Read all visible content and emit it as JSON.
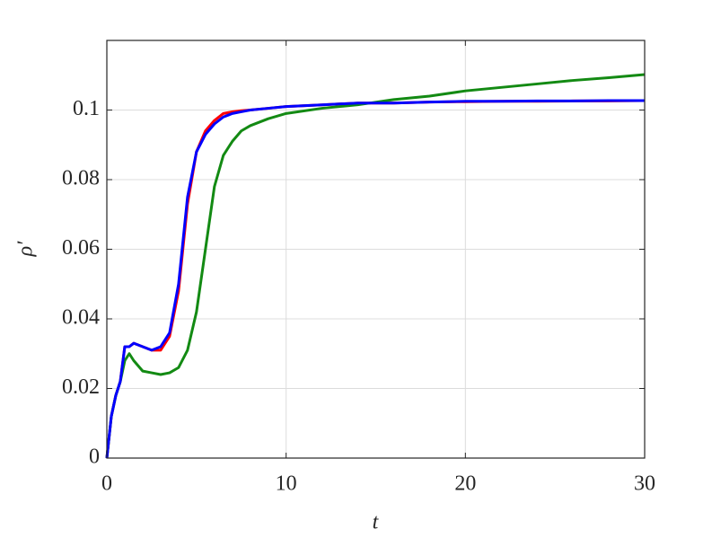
{
  "chart_data": {
    "type": "line",
    "x_label": "t",
    "y_label": "ρ′",
    "x": [
      0,
      0.25,
      0.5,
      0.75,
      1,
      1.25,
      1.5,
      2,
      2.5,
      3,
      3.5,
      4,
      4.5,
      5,
      5.5,
      6,
      6.5,
      7,
      7.5,
      8,
      9,
      10,
      12,
      14,
      16,
      18,
      20,
      22,
      24,
      26,
      28,
      30
    ],
    "series": [
      {
        "color": "#ff0000",
        "values": [
          0,
          0.012,
          0.018,
          0.022,
          0.032,
          0.032,
          0.033,
          0.032,
          0.031,
          0.031,
          0.035,
          0.048,
          0.073,
          0.088,
          0.094,
          0.097,
          0.099,
          0.0995,
          0.0998,
          0.1,
          0.1005,
          0.101,
          0.1015,
          0.102,
          0.102,
          0.1023,
          0.1024,
          0.1025,
          0.1025,
          0.1026,
          0.1026,
          0.1027
        ]
      },
      {
        "color": "#138a13",
        "values": [
          0,
          0.012,
          0.018,
          0.022,
          0.028,
          0.03,
          0.028,
          0.025,
          0.0245,
          0.024,
          0.0245,
          0.026,
          0.031,
          0.042,
          0.06,
          0.078,
          0.087,
          0.091,
          0.094,
          0.0955,
          0.0975,
          0.099,
          0.1005,
          0.1015,
          0.103,
          0.104,
          0.1055,
          0.1065,
          0.1075,
          0.1085,
          0.1093,
          0.1102
        ]
      },
      {
        "color": "#0000ff",
        "values": [
          0,
          0.012,
          0.018,
          0.022,
          0.032,
          0.032,
          0.033,
          0.032,
          0.031,
          0.032,
          0.036,
          0.05,
          0.075,
          0.088,
          0.093,
          0.096,
          0.098,
          0.099,
          0.0995,
          0.1,
          0.1005,
          0.101,
          0.1015,
          0.102,
          0.102,
          0.1023,
          0.1025,
          0.1025,
          0.1026,
          0.1026,
          0.1027,
          0.1027
        ]
      }
    ],
    "xlim": [
      0,
      30
    ],
    "xticks": [
      0,
      10,
      20,
      30
    ],
    "ylim": [
      0,
      0.12
    ],
    "yticks": [
      0,
      0.02,
      0.04,
      0.06,
      0.08,
      0.1
    ],
    "grid": true
  }
}
